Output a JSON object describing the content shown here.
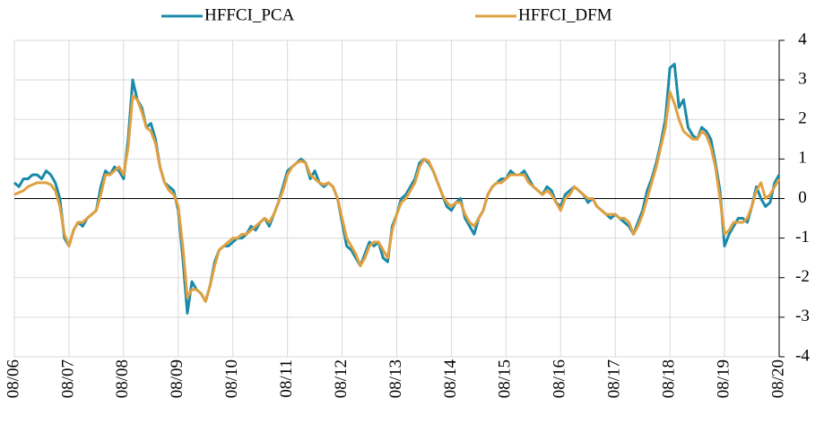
{
  "chart_data": {
    "type": "line",
    "categories": [
      "08/06",
      null,
      null,
      null,
      null,
      null,
      null,
      null,
      null,
      null,
      null,
      null,
      "08/07",
      null,
      null,
      null,
      null,
      null,
      null,
      null,
      null,
      null,
      null,
      null,
      "08/08",
      null,
      null,
      null,
      null,
      null,
      null,
      null,
      null,
      null,
      null,
      null,
      "08/09",
      null,
      null,
      null,
      null,
      null,
      null,
      null,
      null,
      null,
      null,
      null,
      "08/10",
      null,
      null,
      null,
      null,
      null,
      null,
      null,
      null,
      null,
      null,
      null,
      "08/11",
      null,
      null,
      null,
      null,
      null,
      null,
      null,
      null,
      null,
      null,
      null,
      "08/12",
      null,
      null,
      null,
      null,
      null,
      null,
      null,
      null,
      null,
      null,
      null,
      "08/13",
      null,
      null,
      null,
      null,
      null,
      null,
      null,
      null,
      null,
      null,
      null,
      "08/14",
      null,
      null,
      null,
      null,
      null,
      null,
      null,
      null,
      null,
      null,
      null,
      "08/15",
      null,
      null,
      null,
      null,
      null,
      null,
      null,
      null,
      null,
      null,
      null,
      "08/16",
      null,
      null,
      null,
      null,
      null,
      null,
      null,
      null,
      null,
      null,
      null,
      "08/17",
      null,
      null,
      null,
      null,
      null,
      null,
      null,
      null,
      null,
      null,
      null,
      "08/18",
      null,
      null,
      null,
      null,
      null,
      null,
      null,
      null,
      null,
      null,
      null,
      "08/19",
      null,
      null,
      null,
      null,
      null,
      null,
      null,
      null,
      null,
      null,
      null,
      "08/20"
    ],
    "series": [
      {
        "name": "HFFCI_PCA",
        "color": "#1b8aa8",
        "values": [
          0.4,
          0.3,
          0.5,
          0.5,
          0.6,
          0.6,
          0.5,
          0.7,
          0.6,
          0.4,
          0.0,
          -1.0,
          -1.2,
          -0.8,
          -0.6,
          -0.7,
          -0.5,
          -0.4,
          -0.3,
          0.3,
          0.7,
          0.6,
          0.8,
          0.7,
          0.5,
          1.5,
          3.0,
          2.5,
          2.3,
          1.8,
          1.9,
          1.5,
          0.8,
          0.4,
          0.3,
          0.2,
          -0.3,
          -1.5,
          -2.9,
          -2.1,
          -2.3,
          -2.4,
          -2.6,
          -2.2,
          -1.6,
          -1.3,
          -1.2,
          -1.2,
          -1.1,
          -1.0,
          -1.0,
          -0.9,
          -0.7,
          -0.8,
          -0.6,
          -0.5,
          -0.7,
          -0.4,
          -0.1,
          0.3,
          0.7,
          0.8,
          0.9,
          1.0,
          0.9,
          0.5,
          0.7,
          0.4,
          0.3,
          0.4,
          0.3,
          0.0,
          -0.6,
          -1.2,
          -1.3,
          -1.5,
          -1.7,
          -1.4,
          -1.1,
          -1.2,
          -1.1,
          -1.5,
          -1.6,
          -0.7,
          -0.4,
          0.0,
          0.1,
          0.3,
          0.5,
          0.9,
          1.0,
          0.9,
          0.7,
          0.4,
          0.1,
          -0.2,
          -0.3,
          -0.1,
          0.0,
          -0.5,
          -0.7,
          -0.9,
          -0.5,
          -0.3,
          0.1,
          0.3,
          0.4,
          0.5,
          0.5,
          0.7,
          0.6,
          0.6,
          0.7,
          0.5,
          0.3,
          0.2,
          0.1,
          0.3,
          0.2,
          -0.1,
          -0.2,
          0.1,
          0.2,
          0.3,
          0.2,
          0.1,
          -0.1,
          0.0,
          -0.2,
          -0.3,
          -0.4,
          -0.5,
          -0.4,
          -0.5,
          -0.6,
          -0.7,
          -0.9,
          -0.6,
          -0.3,
          0.2,
          0.5,
          0.9,
          1.4,
          2.0,
          3.3,
          3.4,
          2.3,
          2.5,
          1.8,
          1.6,
          1.5,
          1.8,
          1.7,
          1.5,
          0.9,
          0.2,
          -1.2,
          -0.9,
          -0.7,
          -0.5,
          -0.5,
          -0.6,
          -0.2,
          0.3,
          0.0,
          -0.2,
          -0.1,
          0.4,
          0.6
        ]
      },
      {
        "name": "HFFCI_DFM",
        "color": "#e0a040",
        "values": [
          0.1,
          0.15,
          0.2,
          0.3,
          0.35,
          0.4,
          0.4,
          0.4,
          0.35,
          0.2,
          -0.2,
          -0.9,
          -1.2,
          -0.8,
          -0.6,
          -0.6,
          -0.5,
          -0.4,
          -0.3,
          0.1,
          0.6,
          0.6,
          0.7,
          0.8,
          0.6,
          1.3,
          2.6,
          2.5,
          2.2,
          1.8,
          1.7,
          1.4,
          0.8,
          0.4,
          0.2,
          0.1,
          -0.2,
          -1.2,
          -2.5,
          -2.3,
          -2.3,
          -2.4,
          -2.6,
          -2.2,
          -1.7,
          -1.3,
          -1.2,
          -1.1,
          -1.0,
          -1.0,
          -0.9,
          -0.9,
          -0.8,
          -0.7,
          -0.6,
          -0.5,
          -0.6,
          -0.4,
          -0.1,
          0.2,
          0.6,
          0.8,
          0.9,
          0.95,
          0.9,
          0.6,
          0.5,
          0.4,
          0.35,
          0.4,
          0.3,
          0.0,
          -0.5,
          -1.0,
          -1.2,
          -1.4,
          -1.7,
          -1.5,
          -1.2,
          -1.1,
          -1.1,
          -1.3,
          -1.5,
          -0.8,
          -0.4,
          -0.1,
          0.0,
          0.2,
          0.4,
          0.8,
          1.0,
          0.95,
          0.7,
          0.4,
          0.1,
          -0.1,
          -0.2,
          -0.1,
          -0.1,
          -0.4,
          -0.6,
          -0.7,
          -0.5,
          -0.3,
          0.1,
          0.3,
          0.4,
          0.4,
          0.5,
          0.6,
          0.6,
          0.6,
          0.6,
          0.4,
          0.3,
          0.2,
          0.1,
          0.2,
          0.1,
          -0.1,
          -0.3,
          0.0,
          0.1,
          0.3,
          0.2,
          0.1,
          0.0,
          0.0,
          -0.2,
          -0.3,
          -0.4,
          -0.4,
          -0.4,
          -0.5,
          -0.5,
          -0.6,
          -0.9,
          -0.7,
          -0.4,
          0.0,
          0.4,
          0.8,
          1.3,
          1.8,
          2.7,
          2.4,
          2.0,
          1.7,
          1.6,
          1.5,
          1.5,
          1.7,
          1.6,
          1.3,
          0.8,
          0.0,
          -0.9,
          -0.8,
          -0.6,
          -0.6,
          -0.6,
          -0.5,
          -0.2,
          0.2,
          0.4,
          0.0,
          0.1,
          0.3,
          0.5
        ]
      }
    ],
    "ylim": [
      -4,
      4
    ],
    "yticks": [
      -4,
      -3,
      -2,
      -1,
      0,
      1,
      2,
      3,
      4
    ],
    "grid": true
  }
}
